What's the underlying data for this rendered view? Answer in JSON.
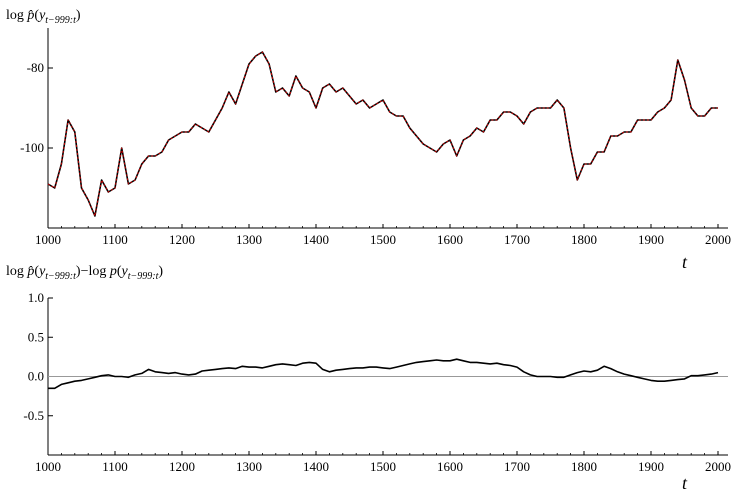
{
  "chart_data": [
    {
      "type": "line",
      "ylabel": "log p̂(y_{t−999:t})",
      "xlabel": "t",
      "xlim": [
        1000,
        2000
      ],
      "ylim": [
        -120,
        -70
      ],
      "x_ticks": [
        "1000",
        "1100",
        "1200",
        "1300",
        "1400",
        "1500",
        "1600",
        "1700",
        "1800",
        "1900",
        "2000"
      ],
      "y_ticks": [
        {
          "v": -80,
          "label": "-80"
        },
        {
          "v": -100,
          "label": "-100"
        }
      ],
      "series": [
        {
          "color": "#000000",
          "style": "solid"
        },
        {
          "color": "#cc0000",
          "style": "dashed"
        }
      ],
      "x": [
        1000,
        1010,
        1020,
        1030,
        1040,
        1050,
        1060,
        1070,
        1080,
        1090,
        1100,
        1110,
        1120,
        1130,
        1140,
        1150,
        1160,
        1170,
        1180,
        1190,
        1200,
        1210,
        1220,
        1230,
        1240,
        1250,
        1260,
        1270,
        1280,
        1290,
        1300,
        1310,
        1320,
        1330,
        1340,
        1350,
        1360,
        1370,
        1380,
        1390,
        1400,
        1410,
        1420,
        1430,
        1440,
        1450,
        1460,
        1470,
        1480,
        1490,
        1500,
        1510,
        1520,
        1530,
        1540,
        1550,
        1560,
        1570,
        1580,
        1590,
        1600,
        1610,
        1620,
        1630,
        1640,
        1650,
        1660,
        1670,
        1680,
        1690,
        1700,
        1710,
        1720,
        1730,
        1740,
        1750,
        1760,
        1770,
        1780,
        1790,
        1800,
        1810,
        1820,
        1830,
        1840,
        1850,
        1860,
        1870,
        1880,
        1890,
        1900,
        1910,
        1920,
        1930,
        1940,
        1950,
        1960,
        1970,
        1980,
        1990,
        2000
      ],
      "y": [
        -109,
        -110,
        -104,
        -93,
        -96,
        -110,
        -113,
        -117,
        -108,
        -111,
        -110,
        -100,
        -109,
        -108,
        -104,
        -102,
        -102,
        -101,
        -98,
        -97,
        -96,
        -96,
        -94,
        -95,
        -96,
        -93,
        -90,
        -86,
        -89,
        -84,
        -79,
        -77,
        -76,
        -79,
        -86,
        -85,
        -87,
        -82,
        -85,
        -86,
        -90,
        -85,
        -84,
        -86,
        -85,
        -87,
        -89,
        -88,
        -90,
        -89,
        -88,
        -91,
        -92,
        -92,
        -95,
        -97,
        -99,
        -100,
        -101,
        -99,
        -98,
        -102,
        -98,
        -97,
        -95,
        -96,
        -93,
        -93,
        -91,
        -91,
        -92,
        -94,
        -91,
        -90,
        -90,
        -90,
        -88,
        -90,
        -100,
        -108,
        -104,
        -104,
        -101,
        -101,
        -97,
        -97,
        -96,
        -96,
        -93,
        -93,
        -93,
        -91,
        -90,
        -88,
        -78,
        -83,
        -90,
        -92,
        -92,
        -90,
        -90
      ]
    },
    {
      "type": "line",
      "ylabel": "log p̂(y_{t−999:t})−log p(y_{t−999:t})",
      "xlabel": "t",
      "xlim": [
        1000,
        2000
      ],
      "ylim": [
        -1.0,
        1.0
      ],
      "x_ticks": [
        "1000",
        "1100",
        "1200",
        "1300",
        "1400",
        "1500",
        "1600",
        "1700",
        "1800",
        "1900",
        "2000"
      ],
      "y_ticks": [
        {
          "v": 1.0,
          "label": "1.0"
        },
        {
          "v": 0.5,
          "label": "0.5"
        },
        {
          "v": 0.0,
          "label": "0.0"
        },
        {
          "v": -0.5,
          "label": "-0.5"
        }
      ],
      "reference_line": 0.0,
      "x": [
        1000,
        1010,
        1020,
        1030,
        1040,
        1050,
        1060,
        1070,
        1080,
        1090,
        1100,
        1110,
        1120,
        1130,
        1140,
        1150,
        1160,
        1170,
        1180,
        1190,
        1200,
        1210,
        1220,
        1230,
        1240,
        1250,
        1260,
        1270,
        1280,
        1290,
        1300,
        1310,
        1320,
        1330,
        1340,
        1350,
        1360,
        1370,
        1380,
        1390,
        1400,
        1410,
        1420,
        1430,
        1440,
        1450,
        1460,
        1470,
        1480,
        1490,
        1500,
        1510,
        1520,
        1530,
        1540,
        1550,
        1560,
        1570,
        1580,
        1590,
        1600,
        1610,
        1620,
        1630,
        1640,
        1650,
        1660,
        1670,
        1680,
        1690,
        1700,
        1710,
        1720,
        1730,
        1740,
        1750,
        1760,
        1770,
        1780,
        1790,
        1800,
        1810,
        1820,
        1830,
        1840,
        1850,
        1860,
        1870,
        1880,
        1890,
        1900,
        1910,
        1920,
        1930,
        1940,
        1950,
        1960,
        1970,
        1980,
        1990,
        2000
      ],
      "y": [
        -0.15,
        -0.15,
        -0.1,
        -0.08,
        -0.06,
        -0.05,
        -0.03,
        -0.01,
        0.01,
        0.02,
        0.0,
        0.0,
        -0.01,
        0.02,
        0.04,
        0.09,
        0.06,
        0.05,
        0.04,
        0.05,
        0.03,
        0.02,
        0.03,
        0.07,
        0.08,
        0.09,
        0.1,
        0.11,
        0.1,
        0.13,
        0.12,
        0.12,
        0.11,
        0.13,
        0.15,
        0.16,
        0.15,
        0.14,
        0.17,
        0.18,
        0.17,
        0.09,
        0.06,
        0.08,
        0.09,
        0.1,
        0.11,
        0.11,
        0.12,
        0.12,
        0.11,
        0.1,
        0.12,
        0.14,
        0.16,
        0.18,
        0.19,
        0.2,
        0.21,
        0.2,
        0.2,
        0.22,
        0.2,
        0.18,
        0.18,
        0.17,
        0.16,
        0.17,
        0.15,
        0.14,
        0.12,
        0.06,
        0.02,
        0.0,
        0.0,
        0.0,
        -0.01,
        -0.01,
        0.02,
        0.05,
        0.07,
        0.06,
        0.08,
        0.13,
        0.1,
        0.06,
        0.03,
        0.01,
        -0.01,
        -0.03,
        -0.05,
        -0.06,
        -0.06,
        -0.05,
        -0.04,
        -0.03,
        0.01,
        0.01,
        0.02,
        0.03,
        0.05
      ]
    }
  ]
}
